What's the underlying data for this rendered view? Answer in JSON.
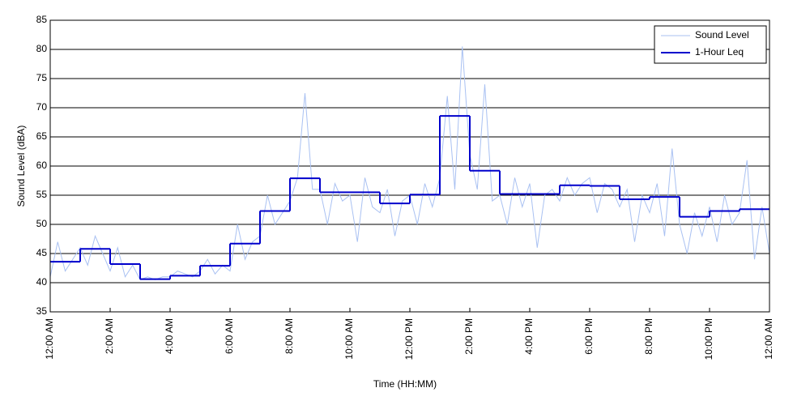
{
  "chart_data": {
    "type": "line",
    "xlabel": "Time (HH:MM)",
    "ylabel": "Sound Level (dBA)",
    "xlim": [
      0,
      24
    ],
    "ylim": [
      35,
      85
    ],
    "yticks": [
      35,
      40,
      45,
      50,
      55,
      60,
      65,
      70,
      75,
      80,
      85
    ],
    "xticks": [
      {
        "value": 0,
        "label": "12:00 AM"
      },
      {
        "value": 2,
        "label": "2:00 AM"
      },
      {
        "value": 4,
        "label": "4:00 AM"
      },
      {
        "value": 6,
        "label": "6:00 AM"
      },
      {
        "value": 8,
        "label": "8:00 AM"
      },
      {
        "value": 10,
        "label": "10:00 AM"
      },
      {
        "value": 12,
        "label": "12:00 PM"
      },
      {
        "value": 14,
        "label": "2:00 PM"
      },
      {
        "value": 16,
        "label": "4:00 PM"
      },
      {
        "value": 18,
        "label": "6:00 PM"
      },
      {
        "value": 20,
        "label": "8:00 PM"
      },
      {
        "value": 22,
        "label": "10:00 PM"
      },
      {
        "value": 24,
        "label": "12:00 AM"
      }
    ],
    "grid": "y",
    "legend": "upper right",
    "series": [
      {
        "name": "Sound Level",
        "color": "#a9c1f2",
        "style": "line",
        "x": [
          0,
          0.25,
          0.5,
          0.75,
          1,
          1.25,
          1.5,
          1.75,
          2,
          2.25,
          2.5,
          2.75,
          3,
          3.25,
          3.5,
          3.75,
          4,
          4.25,
          4.5,
          4.75,
          5,
          5.25,
          5.5,
          5.75,
          6,
          6.25,
          6.5,
          6.75,
          7,
          7.25,
          7.5,
          7.75,
          8,
          8.25,
          8.5,
          8.75,
          9,
          9.25,
          9.5,
          9.75,
          10,
          10.25,
          10.5,
          10.75,
          11,
          11.25,
          11.5,
          11.75,
          12,
          12.25,
          12.5,
          12.75,
          13,
          13.25,
          13.5,
          13.75,
          14,
          14.25,
          14.5,
          14.75,
          15,
          15.25,
          15.5,
          15.75,
          16,
          16.25,
          16.5,
          16.75,
          17,
          17.25,
          17.5,
          17.75,
          18,
          18.25,
          18.5,
          18.75,
          19,
          19.25,
          19.5,
          19.75,
          20,
          20.25,
          20.5,
          20.75,
          21,
          21.25,
          21.5,
          21.75,
          22,
          22.25,
          22.5,
          22.75,
          23,
          23.25,
          23.5,
          23.75,
          24
        ],
        "values": [
          41,
          47,
          42,
          44,
          46,
          43,
          48,
          45,
          42,
          46,
          41,
          43,
          40.5,
          41,
          40.5,
          41,
          41,
          42,
          41.5,
          41,
          42,
          44,
          41.5,
          43,
          42,
          50,
          44,
          47,
          48,
          55,
          50,
          52,
          54,
          58,
          72.5,
          56,
          56,
          50,
          57,
          54,
          55,
          47,
          58,
          53,
          52,
          56,
          48,
          54,
          55,
          50,
          57,
          53,
          58,
          72,
          56,
          80.5,
          62,
          56,
          74,
          54,
          55,
          50,
          58,
          53,
          57,
          46,
          55,
          56,
          54,
          58,
          55,
          57,
          58,
          52,
          57,
          56,
          53,
          56,
          47,
          55,
          52,
          57,
          48,
          63,
          50,
          45,
          52,
          48,
          53,
          47,
          55,
          50,
          52,
          61,
          44,
          53,
          45
        ]
      },
      {
        "name": "1-Hour Leq",
        "color": "#0000cc",
        "style": "step",
        "x": [
          0,
          1,
          2,
          3,
          4,
          5,
          6,
          7,
          8,
          9,
          10,
          11,
          12,
          13,
          14,
          15,
          16,
          17,
          18,
          19,
          20,
          21,
          22,
          23
        ],
        "values": [
          43.6,
          45.8,
          43.2,
          40.6,
          41.2,
          42.9,
          46.7,
          52.3,
          57.9,
          55.5,
          55.5,
          53.6,
          55.1,
          68.6,
          59.2,
          55.2,
          55.2,
          56.7,
          56.6,
          54.3,
          54.7,
          51.3,
          52.3,
          52.6
        ]
      }
    ]
  }
}
